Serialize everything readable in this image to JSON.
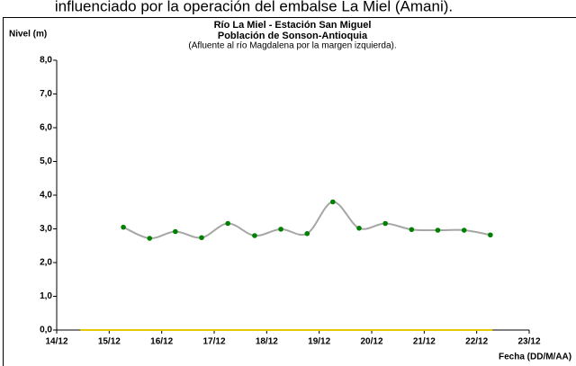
{
  "caption": "influenciado por la operación del embalse La Miel (Amani).",
  "chart_data": {
    "type": "line",
    "title": "Río La Miel  - Estación San Miguel",
    "subtitle": "Población de Sonson-Antioquia",
    "subtitle2": "(Afluente al río Magdalena por la margen izquierda).",
    "ylabel": "Nivel (m)",
    "xlabel": "Fecha (DD/M/AA)",
    "xlim": [
      14,
      23
    ],
    "xticks": [
      {
        "value": 14,
        "label": "14/12"
      },
      {
        "value": 15,
        "label": "15/12"
      },
      {
        "value": 16,
        "label": "16/12"
      },
      {
        "value": 17,
        "label": "17/12"
      },
      {
        "value": 18,
        "label": "18/12"
      },
      {
        "value": 19,
        "label": "19/12"
      },
      {
        "value": 20,
        "label": "20/12"
      },
      {
        "value": 21,
        "label": "21/12"
      },
      {
        "value": 22,
        "label": "22/12"
      },
      {
        "value": 23,
        "label": "23/12"
      }
    ],
    "ylim": [
      0,
      8
    ],
    "yticks": [
      {
        "value": 0,
        "label": "0,0"
      },
      {
        "value": 1,
        "label": "1,0"
      },
      {
        "value": 2,
        "label": "2,0"
      },
      {
        "value": 3,
        "label": "3,0"
      },
      {
        "value": 4,
        "label": "4,0"
      },
      {
        "value": 5,
        "label": "5,0"
      },
      {
        "value": 6,
        "label": "6,0"
      },
      {
        "value": 7,
        "label": "7,0"
      },
      {
        "value": 8,
        "label": "8,0"
      }
    ],
    "grid": false,
    "series": [
      {
        "color": "#a6a6a6",
        "marker_color": "#008000",
        "smooth": true,
        "x": [
          15.27,
          15.77,
          16.26,
          16.76,
          17.26,
          17.77,
          18.27,
          18.77,
          19.26,
          19.76,
          20.26,
          20.76,
          21.26,
          21.76,
          22.26
        ],
        "values": [
          3.05,
          2.72,
          2.92,
          2.74,
          3.16,
          2.8,
          2.99,
          2.86,
          3.8,
          3.02,
          3.16,
          2.98,
          2.96,
          2.96,
          2.82
        ]
      },
      {
        "color": "#e6c800",
        "smooth": false,
        "x": [
          14.45,
          22.3
        ],
        "values": [
          0,
          0
        ]
      }
    ]
  }
}
